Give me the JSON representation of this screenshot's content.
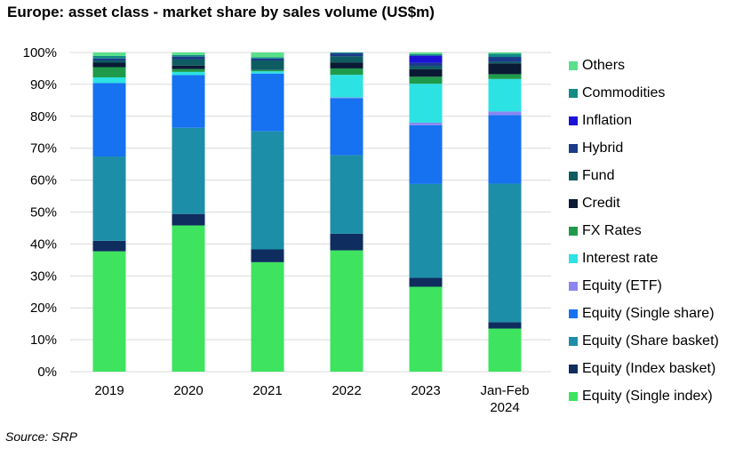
{
  "chart_data": {
    "type": "bar",
    "stacked": true,
    "title": "Europe: asset class - market share by sales volume (US$m)",
    "source": "Source: SRP",
    "xlabel": "",
    "ylabel": "",
    "ylim": [
      0,
      100
    ],
    "y_ticks": [
      "0%",
      "10%",
      "20%",
      "30%",
      "40%",
      "50%",
      "60%",
      "70%",
      "80%",
      "90%",
      "100%"
    ],
    "grid": true,
    "legend_position": "right",
    "categories": [
      [
        "2019"
      ],
      [
        "2020"
      ],
      [
        "2021"
      ],
      [
        "2022"
      ],
      [
        "2023"
      ],
      [
        "Jan-Feb",
        "2024"
      ]
    ],
    "series": [
      {
        "name": "Equity (Single index)",
        "color": "#3ee45f",
        "values": [
          37.7,
          45.8,
          34.3,
          38.0,
          26.6,
          13.5
        ]
      },
      {
        "name": "Equity (Index basket)",
        "color": "#0f2d5e",
        "values": [
          3.3,
          3.6,
          4.0,
          5.2,
          2.8,
          2.0
        ]
      },
      {
        "name": "Equity (Share basket)",
        "color": "#1d8ea8",
        "values": [
          26.4,
          27.0,
          37.0,
          24.6,
          29.4,
          43.4
        ]
      },
      {
        "name": "Equity (Single share)",
        "color": "#1672f0",
        "values": [
          23.0,
          16.5,
          18.1,
          17.9,
          18.4,
          21.5
        ]
      },
      {
        "name": "Equity (ETF)",
        "color": "#8b86f0",
        "values": [
          0.0,
          0.0,
          0.0,
          0.2,
          0.8,
          1.1
        ]
      },
      {
        "name": "Interest rate",
        "color": "#2de2e2",
        "values": [
          1.8,
          1.0,
          0.7,
          7.1,
          12.2,
          10.2
        ]
      },
      {
        "name": "FX Rates",
        "color": "#1f9a4a",
        "values": [
          3.2,
          0.9,
          0.4,
          2.0,
          2.2,
          1.5
        ]
      },
      {
        "name": "Credit",
        "color": "#0a1a35",
        "values": [
          1.4,
          1.1,
          0.0,
          1.9,
          2.4,
          3.4
        ]
      },
      {
        "name": "Fund",
        "color": "#0e5c62",
        "values": [
          0.7,
          2.0,
          3.0,
          1.9,
          0.9,
          0.5
        ]
      },
      {
        "name": "Hybrid",
        "color": "#1b3a8a",
        "values": [
          0.6,
          0.8,
          0.6,
          0.9,
          1.0,
          1.5
        ]
      },
      {
        "name": "Inflation",
        "color": "#1c12d6",
        "values": [
          0.0,
          0.0,
          0.0,
          0.0,
          2.3,
          0.0
        ]
      },
      {
        "name": "Commodities",
        "color": "#128a86",
        "values": [
          0.8,
          0.5,
          0.4,
          0.3,
          0.5,
          1.0
        ]
      },
      {
        "name": "Others",
        "color": "#5ae08a",
        "values": [
          1.1,
          0.8,
          1.5,
          0.0,
          0.5,
          0.4
        ]
      }
    ]
  }
}
